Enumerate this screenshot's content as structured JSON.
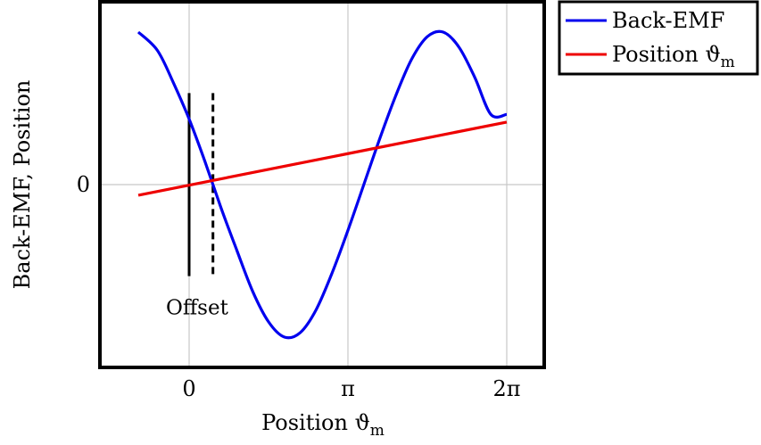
{
  "chart_data": {
    "type": "line",
    "xlabel": "Position ϑ",
    "xlabel_sub": "m",
    "ylabel": "Back-EMF, Position",
    "xlim": [
      -0.98,
      2.23
    ],
    "ylim": [
      -1.2,
      1.2
    ],
    "x_ticks": [
      {
        "value": 0,
        "label": "0"
      },
      {
        "value": 1,
        "label": "π"
      },
      {
        "value": 2,
        "label": "2π"
      }
    ],
    "y_ticks": [
      {
        "value": 0,
        "label": "0"
      }
    ],
    "grid": true,
    "legend_position": "outside-top-right",
    "series": [
      {
        "name": "Back-EMF",
        "color": "#0000ee",
        "x": [
          -0.32,
          -0.2,
          -0.1,
          0,
          0.1,
          0.2,
          0.3,
          0.4,
          0.5,
          0.6,
          0.7,
          0.8,
          0.9,
          1.0,
          1.1,
          1.2,
          1.3,
          1.4,
          1.5,
          1.6,
          1.7,
          1.8,
          1.9,
          2.0
        ],
        "y": [
          1.0,
          0.88,
          0.67,
          0.43,
          0.15,
          -0.15,
          -0.43,
          -0.7,
          -0.9,
          -1.0,
          -0.97,
          -0.82,
          -0.58,
          -0.3,
          0.0,
          0.3,
          0.58,
          0.82,
          0.97,
          1.0,
          0.9,
          0.7,
          0.46,
          0.46
        ]
      },
      {
        "name": "Position ϑ",
        "name_sub": "m",
        "color": "#ee0000",
        "x": [
          -0.32,
          2.0
        ],
        "y": [
          -0.07,
          0.41
        ]
      }
    ],
    "annotations": [
      {
        "type": "vline",
        "x": 0,
        "y_from": -0.6,
        "y_to": 0.6,
        "style": "solid"
      },
      {
        "type": "vline",
        "x": 0.15,
        "y_from": -0.6,
        "y_to": 0.6,
        "style": "dashed"
      },
      {
        "type": "text",
        "text": "Offset",
        "x": 0.05,
        "y": -0.85
      }
    ]
  }
}
